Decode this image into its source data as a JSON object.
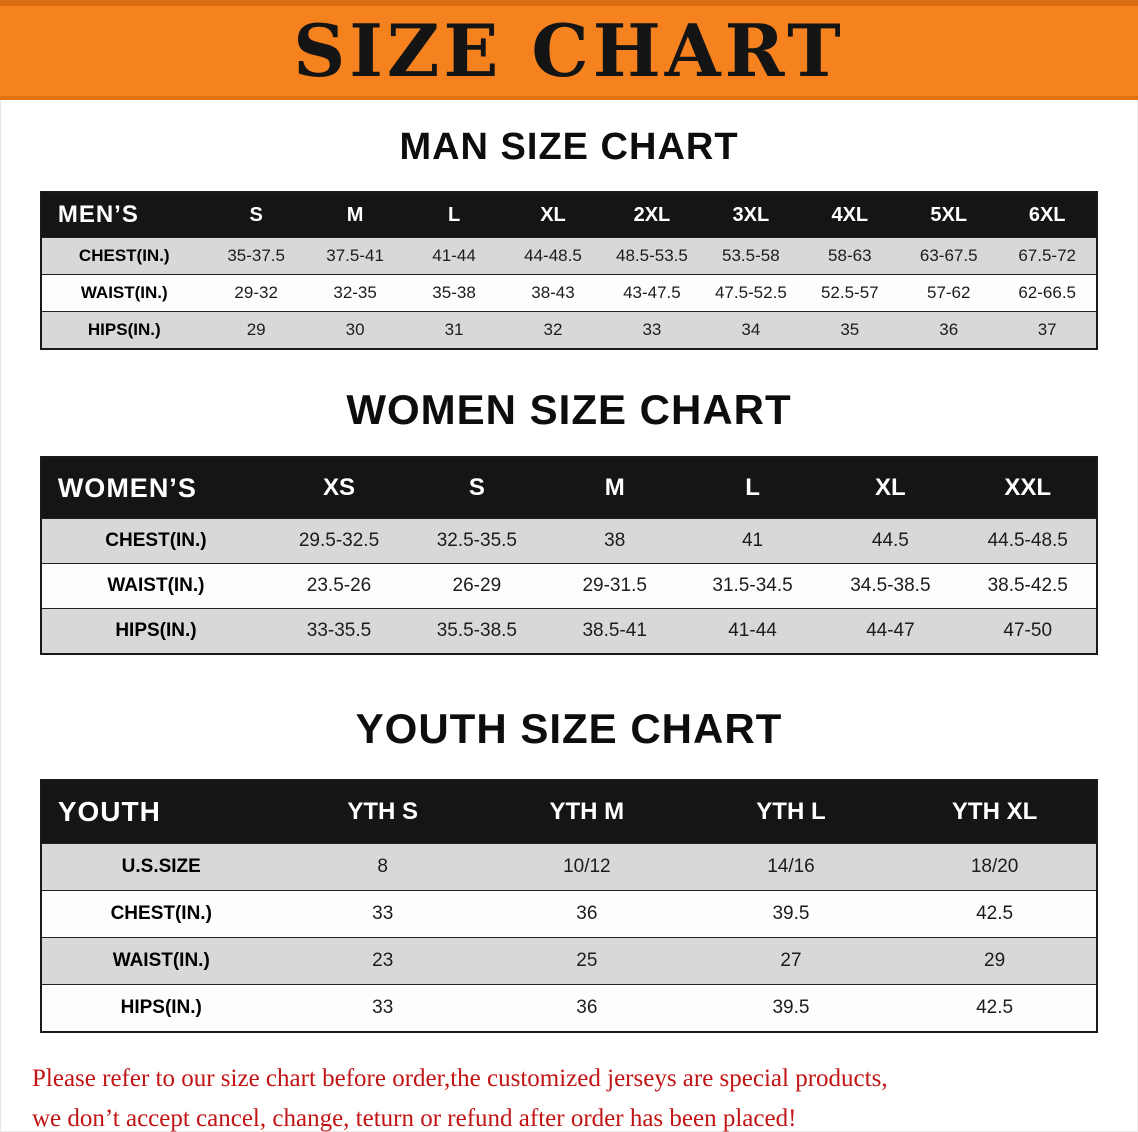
{
  "banner": {
    "title": "SIZE CHART",
    "bg_color": "#f5821f",
    "text_color": "#141414"
  },
  "tables": [
    {
      "id": "men",
      "heading": "MAN SIZE CHART",
      "header": [
        "MEN’S",
        "S",
        "M",
        "L",
        "XL",
        "2XL",
        "3XL",
        "4XL",
        "5XL",
        "6XL"
      ],
      "rows": [
        [
          "CHEST(IN.)",
          "35-37.5",
          "37.5-41",
          "41-44",
          "44-48.5",
          "48.5-53.5",
          "53.5-58",
          "58-63",
          "63-67.5",
          "67.5-72"
        ],
        [
          "WAIST(IN.)",
          "29-32",
          "32-35",
          "35-38",
          "38-43",
          "43-47.5",
          "47.5-52.5",
          "52.5-57",
          "57-62",
          "62-66.5"
        ],
        [
          "HIPS(IN.)",
          "29",
          "30",
          "31",
          "32",
          "33",
          "34",
          "35",
          "36",
          "37"
        ]
      ]
    },
    {
      "id": "women",
      "heading": "WOMEN SIZE CHART",
      "header": [
        "WOMEN’S",
        "XS",
        "S",
        "M",
        "L",
        "XL",
        "XXL"
      ],
      "rows": [
        [
          "CHEST(IN.)",
          "29.5-32.5",
          "32.5-35.5",
          "38",
          "41",
          "44.5",
          "44.5-48.5"
        ],
        [
          "WAIST(IN.)",
          "23.5-26",
          "26-29",
          "29-31.5",
          "31.5-34.5",
          "34.5-38.5",
          "38.5-42.5"
        ],
        [
          "HIPS(IN.)",
          "33-35.5",
          "35.5-38.5",
          "38.5-41",
          "41-44",
          "44-47",
          "47-50"
        ]
      ]
    },
    {
      "id": "youth",
      "heading": "YOUTH SIZE CHART",
      "header": [
        "YOUTH",
        "YTH S",
        "YTH M",
        "YTH L",
        "YTH XL"
      ],
      "rows": [
        [
          "U.S.SIZE",
          "8",
          "10/12",
          "14/16",
          "18/20"
        ],
        [
          "CHEST(IN.)",
          "33",
          "36",
          "39.5",
          "42.5"
        ],
        [
          "WAIST(IN.)",
          "23",
          "25",
          "27",
          "29"
        ],
        [
          "HIPS(IN.)",
          "33",
          "36",
          "39.5",
          "42.5"
        ]
      ]
    }
  ],
  "footer": {
    "line1": "Please refer to our size chart before order,the customized jerseys are special products,",
    "line2": "we don’t accept cancel, change, teturn or refund after order has been placed!",
    "text_color": "#c21414"
  },
  "colors": {
    "banner_orange": "#f5821f",
    "banner_border": "#d96f10",
    "table_header_bg": "#151515",
    "row_gray": "#d8d8d8",
    "disclaimer_red": "#c21414"
  }
}
